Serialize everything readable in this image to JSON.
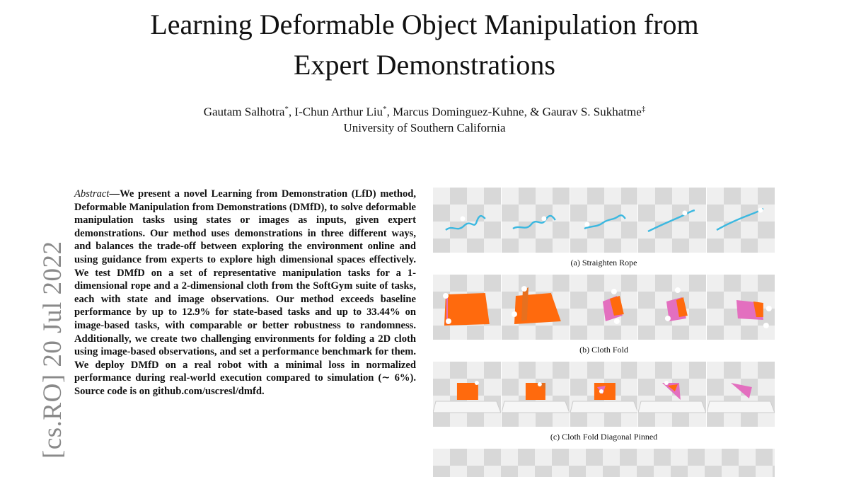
{
  "paper": {
    "title_line1": "Learning Deformable Object Manipulation from",
    "title_line2": "Expert Demonstrations",
    "authors": [
      {
        "name": "Gautam Salhotra",
        "mark": "*",
        "sep": ", "
      },
      {
        "name": "I-Chun Arthur Liu",
        "mark": "*",
        "sep": ", "
      },
      {
        "name": "Marcus Dominguez-Kuhne",
        "mark": "",
        "sep": ", & "
      },
      {
        "name": "Gaurav S. Sukhatme",
        "mark": "‡",
        "sep": ""
      }
    ],
    "affiliation": "University of Southern California"
  },
  "arxiv_stamp": "[cs.RO]  20 Jul 2022",
  "abstract": {
    "label": "Abstract",
    "dash": "—",
    "text": "We present a novel Learning from Demonstration (LfD) method, Deformable Manipulation from Demonstrations (DMfD), to solve deformable manipulation tasks using states or images as inputs, given expert demonstrations. Our method uses demonstrations in three different ways, and balances the trade-off between exploring the environment online and using guidance from experts to explore high dimensional spaces effectively. We test DMfD on a set of representative manipulation tasks for a 1-dimensional rope and a 2-dimensional cloth from the SoftGym suite of tasks, each with state and image observations. Our method exceeds baseline performance by up to 12.9% for state-based tasks and up to 33.44% on image-based tasks, with comparable or better robustness to randomness. Additionally, we create two challenging environments for folding a 2D cloth using image-based observations, and set a performance benchmark for them. We deploy DMfD on a real robot with a minimal loss in normalized performance during real-world execution compared to simulation (∼ 6%). Source code is on github.com/uscresl/dmfd."
  },
  "figure": {
    "captions": {
      "a": "(a) Straighten Rope",
      "b": "(b) Cloth Fold",
      "c": "(c) Cloth Fold Diagonal Pinned"
    },
    "colors": {
      "rope": "#3bb8e0",
      "cloth_orange": "#ff6a0d",
      "cloth_pink": "#e36fbf",
      "gripper": "#ffffff"
    }
  }
}
